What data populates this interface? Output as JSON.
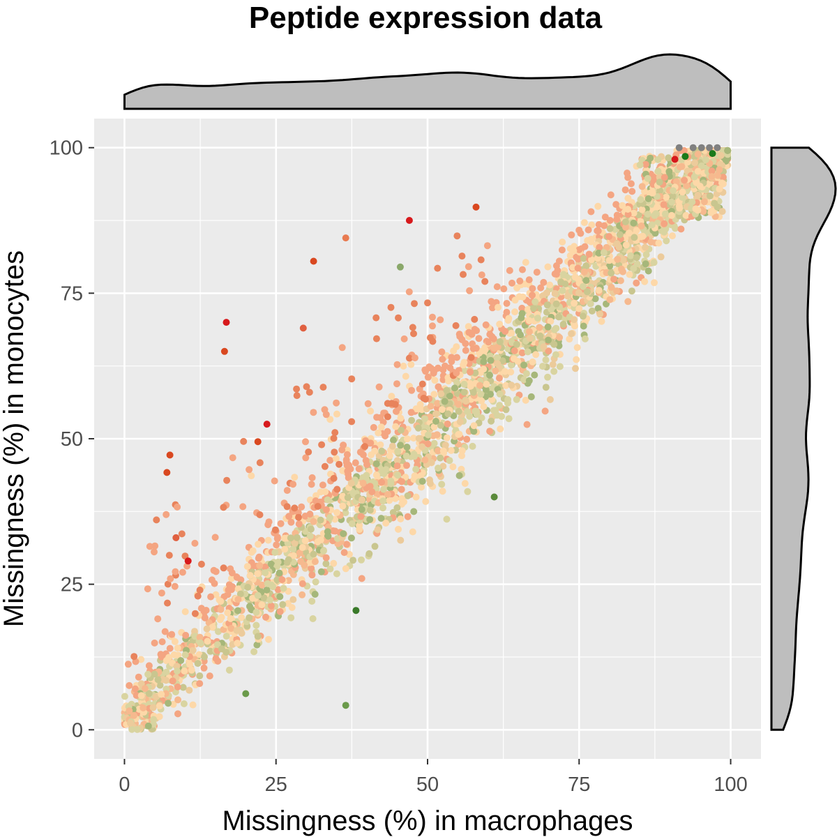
{
  "chart_data": {
    "type": "scatter",
    "title": "Peptide expression data",
    "xlabel": "Missingness (%) in macrophages",
    "ylabel": "Missingness (%) in monocytes",
    "xlim": [
      -5,
      105
    ],
    "ylim": [
      -5,
      105
    ],
    "x_ticks": [
      0,
      25,
      50,
      75,
      100
    ],
    "y_ticks": [
      0,
      25,
      50,
      75,
      100
    ],
    "x_tick_labels": [
      "0",
      "25",
      "50",
      "75",
      "100"
    ],
    "y_tick_labels": [
      "0",
      "25",
      "50",
      "75",
      "100"
    ],
    "grid": true,
    "marginal_density": {
      "top": true,
      "right": true,
      "fill": "#bebebe"
    },
    "colors": {
      "panel_bg": "#ebebeb",
      "grid": "#ffffff",
      "red": "#d7191c",
      "orange": "#f4a582",
      "peach": "#fdd8a8",
      "tan": "#d9d4a0",
      "olive": "#a6b77a",
      "green": "#1a7a1a",
      "grey": "#808080"
    },
    "highlight_points": [
      {
        "x": 47.0,
        "y": 87.5,
        "color": "#d7191c"
      },
      {
        "x": 16.8,
        "y": 70.0,
        "color": "#d7191c"
      },
      {
        "x": 23.5,
        "y": 52.5,
        "color": "#d7191c"
      },
      {
        "x": 10.5,
        "y": 29.0,
        "color": "#d7191c"
      },
      {
        "x": 90.8,
        "y": 98.0,
        "color": "#d7191c"
      },
      {
        "x": 38.2,
        "y": 20.5,
        "color": "#3a7a2a"
      },
      {
        "x": 61.0,
        "y": 40.0,
        "color": "#5a8a3a"
      },
      {
        "x": 36.5,
        "y": 4.2,
        "color": "#6a9a4a"
      },
      {
        "x": 20.0,
        "y": 6.2,
        "color": "#6a9a4a"
      },
      {
        "x": 45.5,
        "y": 79.5,
        "color": "#8aa86a"
      },
      {
        "x": 31.2,
        "y": 80.5,
        "color": "#d94820"
      },
      {
        "x": 58.0,
        "y": 89.8,
        "color": "#d94820"
      },
      {
        "x": 16.5,
        "y": 65.0,
        "color": "#d94820"
      },
      {
        "x": 7.5,
        "y": 47.2,
        "color": "#d94820"
      },
      {
        "x": 7.0,
        "y": 44.2,
        "color": "#d94820"
      },
      {
        "x": 22.0,
        "y": 49.5,
        "color": "#d94820"
      },
      {
        "x": 29.5,
        "y": 69.0,
        "color": "#e06040"
      },
      {
        "x": 36.5,
        "y": 84.5,
        "color": "#e87a50"
      },
      {
        "x": 8.5,
        "y": 33.0,
        "color": "#e06040"
      },
      {
        "x": 93.8,
        "y": 100.0,
        "color": "#808080"
      },
      {
        "x": 95.2,
        "y": 100.0,
        "color": "#808080"
      },
      {
        "x": 96.5,
        "y": 100.0,
        "color": "#808080"
      },
      {
        "x": 97.8,
        "y": 100.0,
        "color": "#808080"
      },
      {
        "x": 91.5,
        "y": 100.0,
        "color": "#808080"
      },
      {
        "x": 97.0,
        "y": 99.0,
        "color": "#1a7a1a"
      },
      {
        "x": 92.5,
        "y": 98.5,
        "color": "#1a7a1a"
      }
    ],
    "bulk_distribution": {
      "description_of_trend": "points concentrated along y = x from 0 to 100 with spread increasing toward the middle; upper-left scatter above diagonal",
      "n_points": 2600
    }
  }
}
